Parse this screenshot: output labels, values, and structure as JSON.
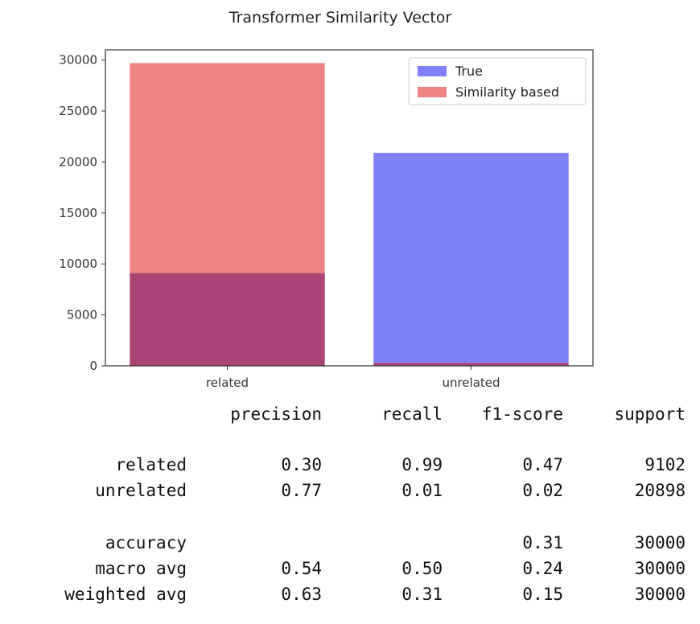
{
  "chart_data": {
    "type": "bar",
    "title": "Transformer Similarity Vector",
    "categories": [
      "related",
      "unrelated"
    ],
    "series": [
      {
        "name": "True",
        "color": "#8080f8",
        "values": [
          9102,
          20898
        ]
      },
      {
        "name": "Similarity based",
        "color": "#ef8582",
        "values": [
          29700,
          300
        ]
      }
    ],
    "overlap_color": "#ad4476",
    "ylim": [
      0,
      31000
    ],
    "yticks": [
      0,
      5000,
      10000,
      15000,
      20000,
      25000,
      30000
    ],
    "xlabel": "",
    "ylabel": "",
    "grid": false,
    "legend": "upper-right"
  },
  "report": {
    "headers": [
      "precision",
      "recall",
      "f1-score",
      "support"
    ],
    "rows": [
      {
        "label": "related",
        "precision": "0.30",
        "recall": "0.99",
        "f1": "0.47",
        "support": "9102"
      },
      {
        "label": "unrelated",
        "precision": "0.77",
        "recall": "0.01",
        "f1": "0.02",
        "support": "20898"
      },
      {
        "label": "accuracy",
        "precision": "",
        "recall": "",
        "f1": "0.31",
        "support": "30000"
      },
      {
        "label": "macro avg",
        "precision": "0.54",
        "recall": "0.50",
        "f1": "0.24",
        "support": "30000"
      },
      {
        "label": "weighted avg",
        "precision": "0.63",
        "recall": "0.31",
        "f1": "0.15",
        "support": "30000"
      }
    ]
  }
}
